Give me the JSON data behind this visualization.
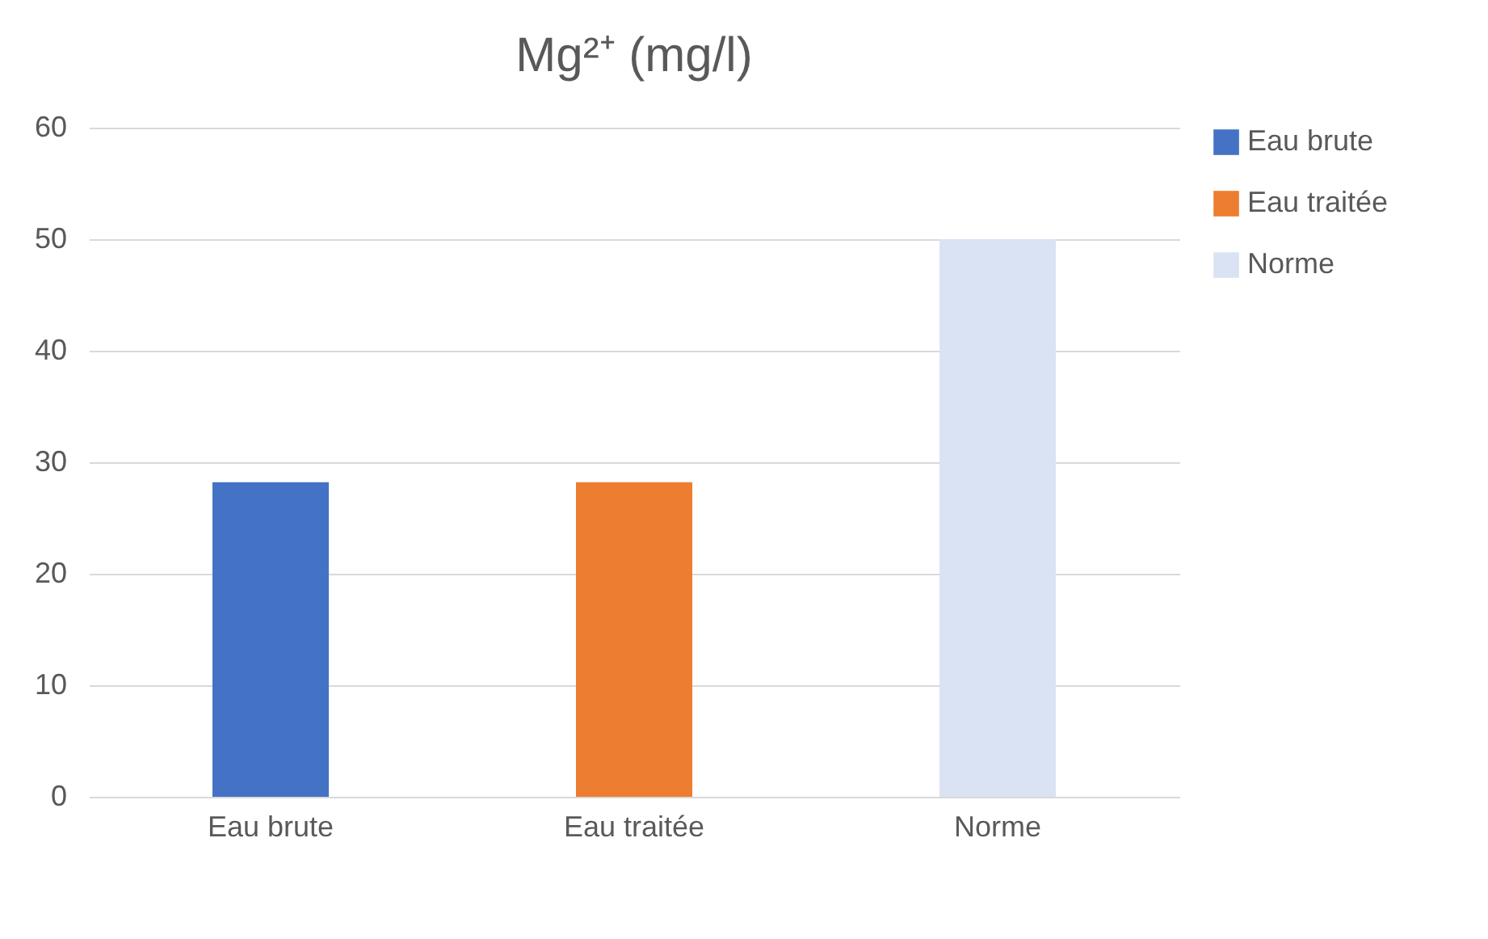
{
  "chart_data": {
    "type": "bar",
    "title": "Mg²⁺  (mg/l)",
    "categories": [
      "Eau brute",
      "Eau traitée",
      "Norme"
    ],
    "series": [
      {
        "name": "Eau brute",
        "color": "#4472c4",
        "values": [
          28.2,
          null,
          null
        ]
      },
      {
        "name": "Eau traitée",
        "color": "#ed7d31",
        "values": [
          null,
          28.2,
          null
        ]
      },
      {
        "name": "Norme",
        "color": "#dae3f3",
        "values": [
          null,
          null,
          50
        ]
      }
    ],
    "ylim": [
      0,
      60
    ],
    "yticks": [
      0,
      10,
      20,
      30,
      40,
      50,
      60
    ],
    "grid": "y",
    "legend": "right"
  }
}
